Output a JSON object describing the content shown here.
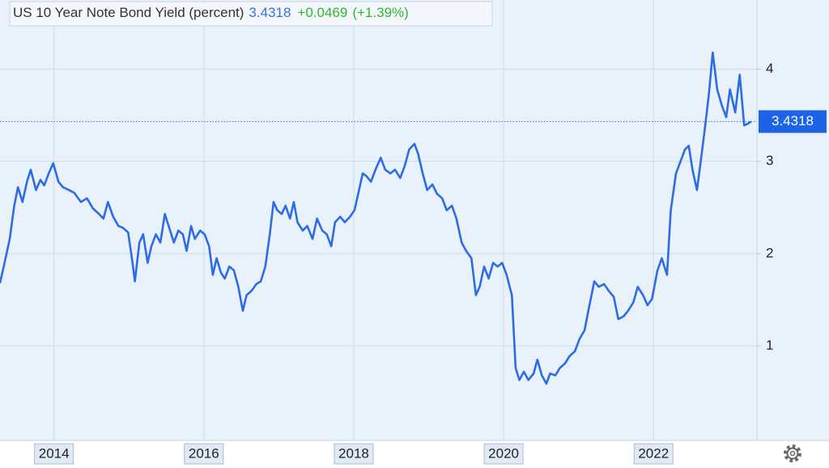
{
  "chart_data": {
    "type": "line",
    "title": "US 10 Year Note Bond Yield (percent)",
    "last_value": 3.4318,
    "change_label": "+0.0469",
    "change_percent_label": "(+1.39%)",
    "color": "#2e6be6",
    "x": [
      2013.28,
      2013.33,
      2013.41,
      2013.47,
      2013.52,
      2013.58,
      2013.64,
      2013.69,
      2013.76,
      2013.82,
      2013.87,
      2013.93,
      2013.99,
      2014.06,
      2014.12,
      2014.2,
      2014.27,
      2014.36,
      2014.44,
      2014.52,
      2014.6,
      2014.66,
      2014.72,
      2014.79,
      2014.86,
      2014.92,
      2014.99,
      2015.04,
      2015.08,
      2015.14,
      2015.19,
      2015.25,
      2015.3,
      2015.36,
      2015.42,
      2015.48,
      2015.55,
      2015.6,
      2015.66,
      2015.72,
      2015.77,
      2015.83,
      2015.88,
      2015.95,
      2016.01,
      2016.07,
      2016.12,
      2016.17,
      2016.23,
      2016.28,
      2016.34,
      2016.4,
      2016.46,
      2016.52,
      2016.57,
      2016.64,
      2016.7,
      2016.76,
      2016.82,
      2016.88,
      2016.93,
      2016.98,
      2017.04,
      2017.09,
      2017.15,
      2017.2,
      2017.25,
      2017.32,
      2017.38,
      2017.45,
      2017.51,
      2017.58,
      2017.64,
      2017.7,
      2017.75,
      2017.82,
      2017.88,
      2017.95,
      2018.01,
      2018.06,
      2018.12,
      2018.17,
      2018.23,
      2018.29,
      2018.36,
      2018.42,
      2018.49,
      2018.55,
      2018.62,
      2018.68,
      2018.74,
      2018.81,
      2018.86,
      2018.92,
      2018.98,
      2019.05,
      2019.11,
      2019.18,
      2019.24,
      2019.31,
      2019.37,
      2019.44,
      2019.5,
      2019.57,
      2019.63,
      2019.68,
      2019.74,
      2019.8,
      2019.86,
      2019.92,
      2019.98,
      2020.04,
      2020.11,
      2020.16,
      2020.21,
      2020.27,
      2020.33,
      2020.4,
      2020.45,
      2020.51,
      2020.57,
      2020.62,
      2020.69,
      2020.75,
      2020.82,
      2020.88,
      2020.95,
      2021.01,
      2021.08,
      2021.14,
      2021.21,
      2021.27,
      2021.34,
      2021.4,
      2021.47,
      2021.53,
      2021.6,
      2021.66,
      2021.73,
      2021.79,
      2021.86,
      2021.92,
      2021.98,
      2022.05,
      2022.11,
      2022.18,
      2022.23,
      2022.3,
      2022.36,
      2022.42,
      2022.47,
      2022.52,
      2022.58,
      2022.63,
      2022.69,
      2022.74,
      2022.79,
      2022.85,
      2022.91,
      2022.97,
      2023.02,
      2023.09,
      2023.15,
      2023.21,
      2023.26,
      2023.3
    ],
    "values": [
      1.68,
      1.86,
      2.16,
      2.52,
      2.72,
      2.56,
      2.78,
      2.91,
      2.69,
      2.8,
      2.74,
      2.87,
      2.98,
      2.78,
      2.72,
      2.69,
      2.66,
      2.56,
      2.6,
      2.49,
      2.43,
      2.38,
      2.56,
      2.4,
      2.3,
      2.28,
      2.23,
      1.95,
      1.7,
      2.12,
      2.21,
      1.9,
      2.08,
      2.21,
      2.12,
      2.43,
      2.25,
      2.12,
      2.25,
      2.21,
      2.03,
      2.3,
      2.16,
      2.25,
      2.21,
      2.08,
      1.77,
      1.95,
      1.79,
      1.73,
      1.86,
      1.82,
      1.64,
      1.38,
      1.55,
      1.6,
      1.67,
      1.7,
      1.86,
      2.21,
      2.56,
      2.47,
      2.43,
      2.52,
      2.38,
      2.56,
      2.34,
      2.25,
      2.3,
      2.16,
      2.38,
      2.25,
      2.21,
      2.08,
      2.34,
      2.4,
      2.34,
      2.4,
      2.47,
      2.65,
      2.87,
      2.84,
      2.78,
      2.91,
      3.04,
      2.91,
      2.87,
      2.91,
      2.82,
      2.95,
      3.13,
      3.19,
      3.08,
      2.87,
      2.69,
      2.75,
      2.65,
      2.6,
      2.47,
      2.52,
      2.38,
      2.12,
      2.03,
      1.95,
      1.55,
      1.64,
      1.86,
      1.73,
      1.9,
      1.86,
      1.9,
      1.77,
      1.55,
      0.76,
      0.63,
      0.72,
      0.63,
      0.7,
      0.85,
      0.68,
      0.59,
      0.7,
      0.68,
      0.76,
      0.81,
      0.89,
      0.94,
      1.07,
      1.17,
      1.42,
      1.7,
      1.64,
      1.67,
      1.6,
      1.53,
      1.29,
      1.32,
      1.38,
      1.47,
      1.64,
      1.55,
      1.44,
      1.51,
      1.81,
      1.95,
      1.77,
      2.47,
      2.87,
      3.0,
      3.13,
      3.17,
      2.91,
      2.69,
      3.0,
      3.39,
      3.74,
      4.18,
      3.78,
      3.61,
      3.48,
      3.78,
      3.53,
      3.94,
      3.39,
      3.41,
      3.43
    ],
    "xlim": [
      2013.28,
      2023.38
    ],
    "xticks": [
      2014,
      2016,
      2018,
      2020,
      2022
    ],
    "ylim": [
      0,
      4.75
    ],
    "yticks": [
      1,
      2,
      3,
      4
    ],
    "grid": true
  }
}
